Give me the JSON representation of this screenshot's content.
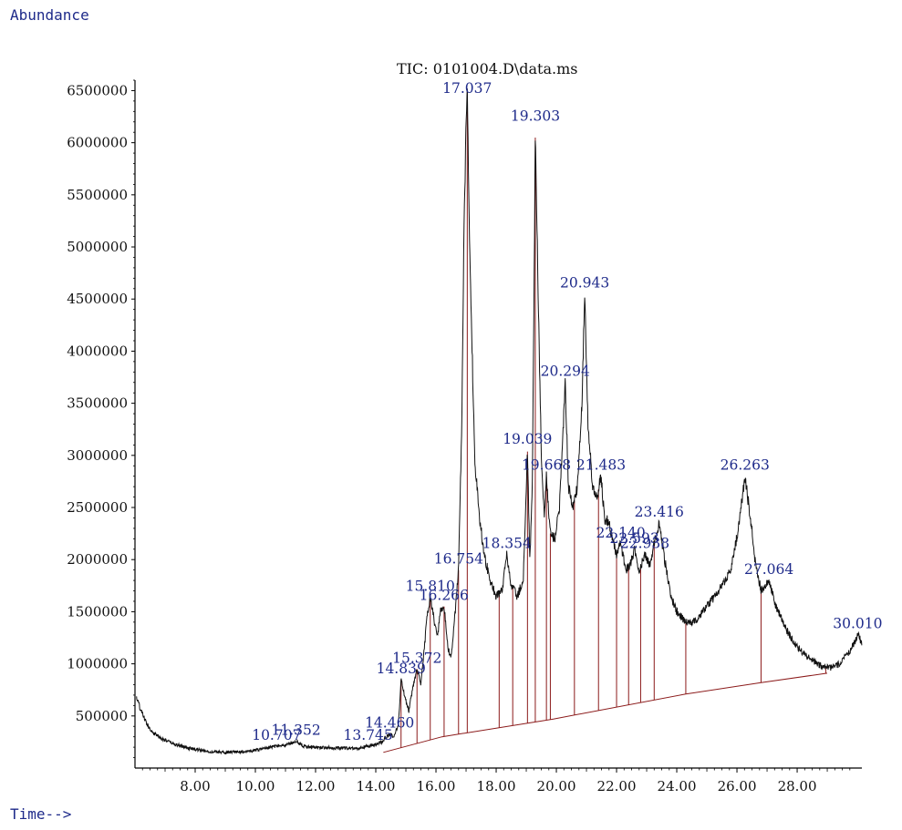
{
  "chart_data": {
    "type": "line",
    "title": "TIC: 0101004.D\\data.ms",
    "ylabel": "Abundance",
    "xlabel": "Time-->",
    "xlim": [
      6.0,
      30.15
    ],
    "ylim": [
      0,
      6600000
    ],
    "x_ticks": [
      8,
      10,
      12,
      14,
      16,
      18,
      20,
      22,
      24,
      26,
      28
    ],
    "x_tick_labels": [
      "8.00",
      "10.00",
      "12.00",
      "14.00",
      "16.00",
      "18.00",
      "20.00",
      "22.00",
      "24.00",
      "26.00",
      "28.00"
    ],
    "y_ticks": [
      500000,
      1000000,
      1500000,
      2000000,
      2500000,
      3000000,
      3500000,
      4000000,
      4500000,
      5000000,
      5500000,
      6000000,
      6500000
    ],
    "y_tick_labels": [
      "500000",
      "1000000",
      "1500000",
      "2000000",
      "2500000",
      "3000000",
      "3500000",
      "4000000",
      "4500000",
      "5000000",
      "5500000",
      "6000000",
      "6500000"
    ],
    "trace": [
      [
        6.05,
        680000
      ],
      [
        6.2,
        550000
      ],
      [
        6.4,
        420000
      ],
      [
        6.6,
        340000
      ],
      [
        6.9,
        280000
      ],
      [
        7.3,
        230000
      ],
      [
        7.8,
        190000
      ],
      [
        8.4,
        160000
      ],
      [
        9.0,
        150000
      ],
      [
        9.6,
        155000
      ],
      [
        10.0,
        170000
      ],
      [
        10.5,
        200000
      ],
      [
        10.7,
        210000
      ],
      [
        11.0,
        220000
      ],
      [
        11.35,
        260000
      ],
      [
        11.6,
        210000
      ],
      [
        12.0,
        200000
      ],
      [
        12.5,
        195000
      ],
      [
        13.0,
        190000
      ],
      [
        13.4,
        190000
      ],
      [
        13.74,
        210000
      ],
      [
        14.0,
        220000
      ],
      [
        14.2,
        250000
      ],
      [
        14.46,
        330000
      ],
      [
        14.6,
        300000
      ],
      [
        14.75,
        420000
      ],
      [
        14.84,
        850000
      ],
      [
        14.95,
        700000
      ],
      [
        15.1,
        550000
      ],
      [
        15.25,
        800000
      ],
      [
        15.37,
        950000
      ],
      [
        15.5,
        800000
      ],
      [
        15.6,
        1100000
      ],
      [
        15.7,
        1450000
      ],
      [
        15.81,
        1640000
      ],
      [
        15.95,
        1400000
      ],
      [
        16.05,
        1250000
      ],
      [
        16.15,
        1500000
      ],
      [
        16.27,
        1550000
      ],
      [
        16.4,
        1150000
      ],
      [
        16.5,
        1050000
      ],
      [
        16.6,
        1350000
      ],
      [
        16.75,
        1900000
      ],
      [
        16.85,
        3200000
      ],
      [
        16.95,
        5500000
      ],
      [
        17.037,
        6550000
      ],
      [
        17.12,
        5000000
      ],
      [
        17.2,
        4000000
      ],
      [
        17.3,
        2900000
      ],
      [
        17.45,
        2400000
      ],
      [
        17.6,
        2050000
      ],
      [
        17.8,
        1800000
      ],
      [
        18.0,
        1650000
      ],
      [
        18.2,
        1700000
      ],
      [
        18.354,
        2050000
      ],
      [
        18.5,
        1750000
      ],
      [
        18.7,
        1650000
      ],
      [
        18.9,
        1800000
      ],
      [
        19.039,
        3050000
      ],
      [
        19.12,
        2000000
      ],
      [
        19.2,
        2700000
      ],
      [
        19.303,
        6150000
      ],
      [
        19.4,
        4500000
      ],
      [
        19.5,
        3000000
      ],
      [
        19.6,
        2400000
      ],
      [
        19.668,
        2800000
      ],
      [
        19.8,
        2250000
      ],
      [
        19.95,
        2200000
      ],
      [
        20.1,
        2500000
      ],
      [
        20.294,
        3700000
      ],
      [
        20.4,
        2700000
      ],
      [
        20.55,
        2500000
      ],
      [
        20.7,
        2700000
      ],
      [
        20.85,
        3500000
      ],
      [
        20.943,
        4550000
      ],
      [
        21.05,
        3300000
      ],
      [
        21.2,
        2700000
      ],
      [
        21.35,
        2600000
      ],
      [
        21.483,
        2800000
      ],
      [
        21.6,
        2400000
      ],
      [
        21.75,
        2350000
      ],
      [
        21.9,
        2150000
      ],
      [
        22.0,
        2050000
      ],
      [
        22.14,
        2150000
      ],
      [
        22.3,
        1900000
      ],
      [
        22.45,
        1950000
      ],
      [
        22.6,
        2100000
      ],
      [
        22.75,
        1900000
      ],
      [
        22.938,
        2050000
      ],
      [
        23.1,
        1950000
      ],
      [
        23.25,
        2150000
      ],
      [
        23.416,
        2350000
      ],
      [
        23.6,
        2000000
      ],
      [
        23.8,
        1650000
      ],
      [
        24.0,
        1500000
      ],
      [
        24.3,
        1400000
      ],
      [
        24.6,
        1400000
      ],
      [
        25.0,
        1550000
      ],
      [
        25.4,
        1700000
      ],
      [
        25.8,
        1900000
      ],
      [
        26.05,
        2300000
      ],
      [
        26.263,
        2800000
      ],
      [
        26.45,
        2400000
      ],
      [
        26.6,
        2000000
      ],
      [
        26.8,
        1700000
      ],
      [
        27.064,
        1800000
      ],
      [
        27.3,
        1550000
      ],
      [
        27.6,
        1350000
      ],
      [
        27.9,
        1200000
      ],
      [
        28.2,
        1100000
      ],
      [
        28.5,
        1030000
      ],
      [
        28.8,
        980000
      ],
      [
        29.1,
        960000
      ],
      [
        29.4,
        1000000
      ],
      [
        29.7,
        1100000
      ],
      [
        29.9,
        1200000
      ],
      [
        30.01,
        1280000
      ],
      [
        30.15,
        1200000
      ]
    ],
    "baseline": [
      [
        14.25,
        150000
      ],
      [
        16.2,
        300000
      ],
      [
        19.9,
        470000
      ],
      [
        24.3,
        710000
      ],
      [
        26.8,
        820000
      ],
      [
        29.0,
        910000
      ]
    ],
    "peaks": [
      {
        "label": "10.707",
        "rt": 10.707,
        "apex": 210000
      },
      {
        "label": "11.352",
        "rt": 11.352,
        "apex": 260000
      },
      {
        "label": "13.745",
        "rt": 13.745,
        "apex": 210000
      },
      {
        "label": "14.460",
        "rt": 14.46,
        "apex": 330000
      },
      {
        "label": "14.839",
        "rt": 14.839,
        "apex": 850000
      },
      {
        "label": "15.372",
        "rt": 15.372,
        "apex": 950000
      },
      {
        "label": "15.810",
        "rt": 15.81,
        "apex": 1640000
      },
      {
        "label": "16.266",
        "rt": 16.266,
        "apex": 1550000
      },
      {
        "label": "16.754",
        "rt": 16.754,
        "apex": 1900000
      },
      {
        "label": "17.037",
        "rt": 17.037,
        "apex": 6550000
      },
      {
        "label": "18.354",
        "rt": 18.354,
        "apex": 2050000
      },
      {
        "label": "19.039",
        "rt": 19.039,
        "apex": 3050000
      },
      {
        "label": "19.303",
        "rt": 19.303,
        "apex": 6150000
      },
      {
        "label": "19.668",
        "rt": 19.668,
        "apex": 2800000
      },
      {
        "label": "20.294",
        "rt": 20.294,
        "apex": 3700000
      },
      {
        "label": "20.943",
        "rt": 20.943,
        "apex": 4550000
      },
      {
        "label": "21.483",
        "rt": 21.483,
        "apex": 2800000
      },
      {
        "label": "22.140",
        "rt": 22.14,
        "apex": 2150000
      },
      {
        "label": "22.593",
        "rt": 22.593,
        "apex": 2100000
      },
      {
        "label": "22.938",
        "rt": 22.938,
        "apex": 2050000
      },
      {
        "label": "23.416",
        "rt": 23.416,
        "apex": 2350000
      },
      {
        "label": "26.263",
        "rt": 26.263,
        "apex": 2800000
      },
      {
        "label": "27.064",
        "rt": 27.064,
        "apex": 1800000
      },
      {
        "label": "30.010",
        "rt": 30.01,
        "apex": 1280000
      }
    ],
    "integration_drops": [
      14.84,
      15.37,
      15.81,
      16.27,
      16.75,
      17.04,
      18.1,
      18.55,
      19.04,
      19.3,
      19.67,
      19.8,
      20.6,
      21.4,
      22.0,
      22.4,
      22.8,
      23.25,
      24.3,
      26.8,
      28.95
    ],
    "colors": {
      "trace": "#111111",
      "labels": "#1e2a8a",
      "integration": "#8b1a1a",
      "axis": "#000000"
    },
    "grid": false,
    "legend": "none"
  }
}
